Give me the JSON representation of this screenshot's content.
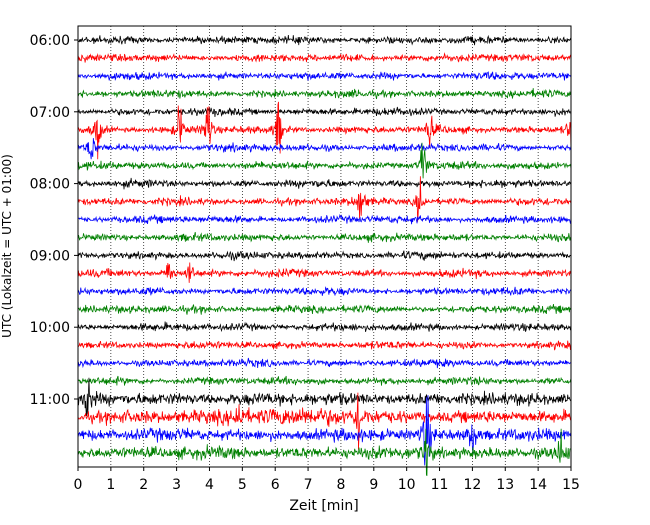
{
  "chart_data": {
    "type": "line",
    "title": "",
    "xlabel": "Zeit  [min]",
    "ylabel": "UTC (Lokalzeit = UTC + 01:00)",
    "xlim": [
      0,
      15
    ],
    "x_ticks": [
      "0",
      "1",
      "2",
      "3",
      "4",
      "5",
      "6",
      "7",
      "8",
      "9",
      "10",
      "11",
      "12",
      "13",
      "14",
      "15"
    ],
    "y_ticks": [
      "06:00",
      "07:00",
      "08:00",
      "09:00",
      "10:00",
      "11:00"
    ],
    "grid": "vertical dotted at each minute",
    "trace_colors": [
      "#000000",
      "#ff0000",
      "#0000ff",
      "#008000"
    ],
    "start_time": "06:00",
    "trace_interval_minutes": 15,
    "trace_count": 24,
    "events": [
      {
        "trace": 5,
        "minute": 0.6,
        "amp": 1.6
      },
      {
        "trace": 5,
        "minute": 3.1,
        "amp": 1.6
      },
      {
        "trace": 5,
        "minute": 3.95,
        "amp": 2.2
      },
      {
        "trace": 5,
        "minute": 6.1,
        "amp": 1.9
      },
      {
        "trace": 5,
        "minute": 10.7,
        "amp": 1.2
      },
      {
        "trace": 5,
        "minute": 15.0,
        "amp": 1.6
      },
      {
        "trace": 6,
        "minute": 0.4,
        "amp": 1.2
      },
      {
        "trace": 7,
        "minute": 10.5,
        "amp": 2.0
      },
      {
        "trace": 9,
        "minute": 8.6,
        "amp": 1.6
      },
      {
        "trace": 9,
        "minute": 10.4,
        "amp": 1.8
      },
      {
        "trace": 13,
        "minute": 2.8,
        "amp": 1.4
      },
      {
        "trace": 13,
        "minute": 3.4,
        "amp": 1.0
      },
      {
        "trace": 21,
        "minute": 4.9,
        "amp": 1.2
      },
      {
        "trace": 20,
        "minute": 0.3,
        "amp": 1.6
      },
      {
        "trace": 21,
        "minute": 8.55,
        "amp": 2.0
      },
      {
        "trace": 22,
        "minute": 10.6,
        "amp": 3.4
      },
      {
        "trace": 22,
        "minute": 12.0,
        "amp": 1.8
      },
      {
        "trace": 23,
        "minute": 10.6,
        "amp": 1.6
      },
      {
        "trace": 23,
        "minute": 14.7,
        "amp": 1.3
      }
    ]
  }
}
